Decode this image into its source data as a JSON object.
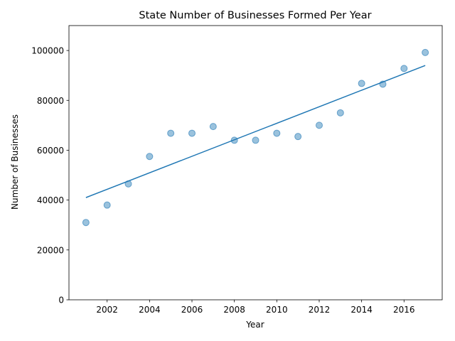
{
  "chart_data": {
    "type": "scatter",
    "title": "State Number of Businesses Formed Per Year",
    "xlabel": "Year",
    "ylabel": "Number of Businesses",
    "xlim": [
      2000.2,
      2017.8
    ],
    "ylim": [
      0,
      110000
    ],
    "x_ticks": [
      2002,
      2004,
      2006,
      2008,
      2010,
      2012,
      2014,
      2016
    ],
    "y_ticks": [
      0,
      20000,
      40000,
      60000,
      80000,
      100000
    ],
    "grid": false,
    "point_color": "#1f77b4",
    "points": [
      {
        "x": 2001,
        "y": 31000
      },
      {
        "x": 2002,
        "y": 38000
      },
      {
        "x": 2003,
        "y": 46500
      },
      {
        "x": 2004,
        "y": 57500
      },
      {
        "x": 2005,
        "y": 66800
      },
      {
        "x": 2006,
        "y": 66800
      },
      {
        "x": 2007,
        "y": 69500
      },
      {
        "x": 2008,
        "y": 64000
      },
      {
        "x": 2009,
        "y": 64000
      },
      {
        "x": 2010,
        "y": 66800
      },
      {
        "x": 2011,
        "y": 65500
      },
      {
        "x": 2012,
        "y": 70000
      },
      {
        "x": 2013,
        "y": 75000
      },
      {
        "x": 2014,
        "y": 86800
      },
      {
        "x": 2015,
        "y": 86500
      },
      {
        "x": 2016,
        "y": 92800
      },
      {
        "x": 2017,
        "y": 99200
      }
    ],
    "trend_line": {
      "color": "#1f77b4",
      "start": {
        "x": 2001,
        "y": 41000
      },
      "end": {
        "x": 2017,
        "y": 94000
      }
    }
  }
}
